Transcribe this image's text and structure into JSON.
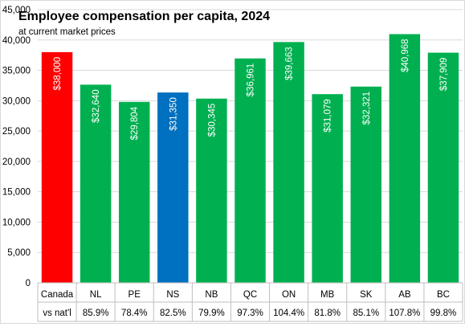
{
  "chart_data": {
    "type": "bar",
    "title": "Employee compensation per capita, 2024",
    "subtitle": "at current market prices",
    "categories": [
      "Canada",
      "NL",
      "PE",
      "NS",
      "NB",
      "QC",
      "ON",
      "MB",
      "SK",
      "AB",
      "BC"
    ],
    "values": [
      38000,
      32640,
      29804,
      31350,
      30345,
      36961,
      39663,
      31079,
      32321,
      40968,
      37909
    ],
    "data_labels": [
      "$38,000",
      "$32,640",
      "$29,804",
      "$31,350",
      "$30,345",
      "$36,961",
      "$39,663",
      "$31,079",
      "$32,321",
      "$40,968",
      "$37,909"
    ],
    "ylim": [
      0,
      45000
    ],
    "yticks": [
      0,
      5000,
      10000,
      15000,
      20000,
      25000,
      30000,
      35000,
      40000,
      45000
    ],
    "ytick_labels": [
      "0",
      "5,000",
      "10,000",
      "15,000",
      "20,000",
      "25,000",
      "30,000",
      "35,000",
      "40,000",
      "45,000"
    ],
    "grid": true,
    "bar_colors": [
      "#ff0000",
      "#00b050",
      "#00b050",
      "#0070c0",
      "#00b050",
      "#00b050",
      "#00b050",
      "#00b050",
      "#00b050",
      "#00b050",
      "#00b050"
    ],
    "table_row": {
      "label": "vs nat'l",
      "values": [
        "",
        "85.9%",
        "78.4%",
        "82.5%",
        "79.9%",
        "97.3%",
        "104.4%",
        "81.8%",
        "85.1%",
        "107.8%",
        "99.8%"
      ]
    }
  }
}
